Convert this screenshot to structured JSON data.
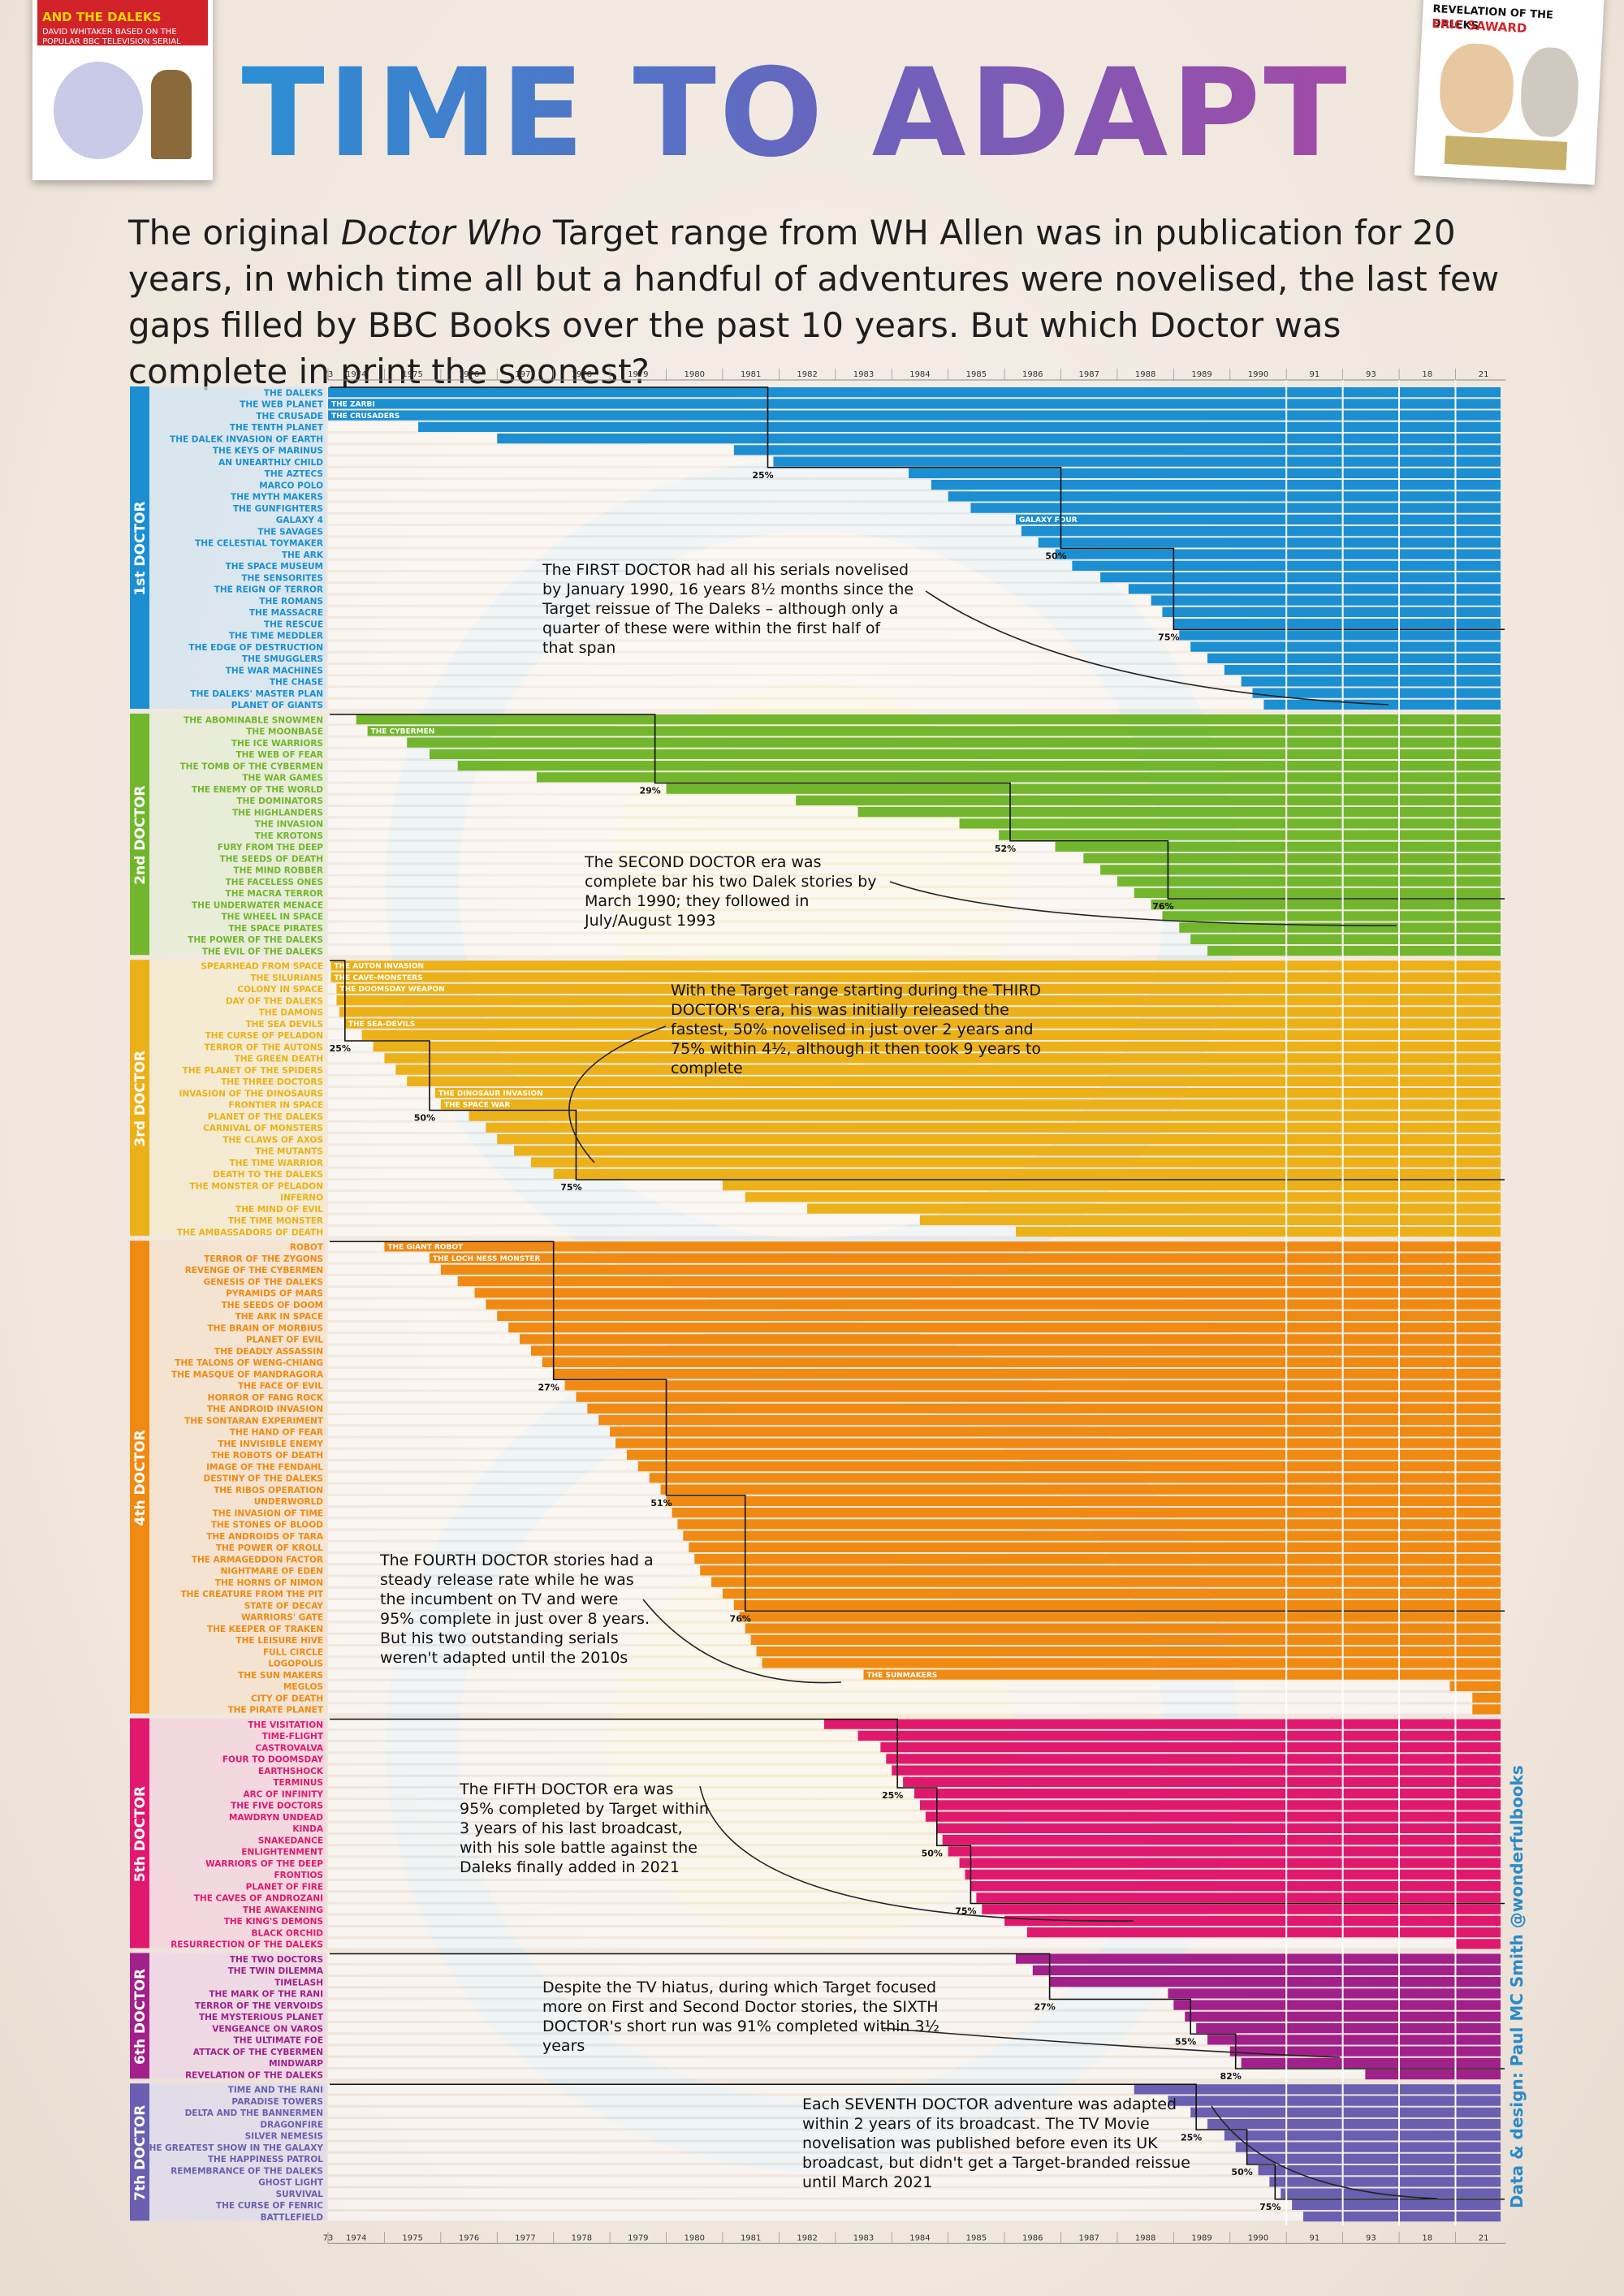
{
  "header": {
    "title": "TIME TO ADAPT",
    "intro_part1": "The original ",
    "intro_italic": "Doctor Who",
    "intro_part2": " Target range from WH Allen was in publication for 20 years, in which time all but a handful of adventures were novelised, the last few gaps filled by BBC Books over the past 10 years. But which Doctor was complete in print the soonest?"
  },
  "covers": {
    "left": {
      "title": "AND THE DALEKS",
      "subtitle": "DAVID WHITAKER BASED ON THE POPULAR BBC TELEVISION SERIAL",
      "color": "#d2232a"
    },
    "right": {
      "title": "REVELATION OF THE DALEKS",
      "subtitle": "ERIC SAWARD",
      "color": "#d2232a"
    }
  },
  "credit": "Data & design: Paul MC Smith  @wonderfulbooks",
  "chart_data": {
    "type": "bar",
    "orientation": "horizontal",
    "description_type": "timeline of first novelisation date per serial; bars extend from first publication to present",
    "x_axis_labels": [
      "73",
      "1974",
      "1975",
      "1976",
      "1977",
      "1978",
      "1979",
      "1980",
      "1981",
      "1982",
      "1983",
      "1984",
      "1985",
      "1986",
      "1987",
      "1988",
      "1989",
      "1990",
      "91",
      "93",
      "18",
      "21"
    ],
    "x_axis_positions": [
      0.0,
      0.5,
      1.5,
      2.5,
      3.5,
      4.5,
      5.5,
      6.5,
      7.5,
      8.5,
      9.5,
      10.5,
      11.5,
      12.5,
      13.5,
      14.5,
      15.5,
      16.5,
      17.5,
      18.5,
      19.5,
      20.5
    ],
    "groups": [
      {
        "name": "1st DOCTOR",
        "color": "#1b8fd2",
        "light": "#d3e6f3",
        "serials": [
          "THE DALEKS",
          "THE WEB PLANET",
          "THE CRUSADE",
          "THE TENTH PLANET",
          "THE DALEK INVASION OF EARTH",
          "THE KEYS OF MARINUS",
          "AN UNEARTHLY CHILD",
          "THE AZTECS",
          "MARCO POLO",
          "THE MYTH MAKERS",
          "THE GUNFIGHTERS",
          "GALAXY 4",
          "THE SAVAGES",
          "THE CELESTIAL TOYMAKER",
          "THE ARK",
          "THE SPACE MUSEUM",
          "THE SENSORITES",
          "THE REIGN OF TERROR",
          "THE ROMANS",
          "THE MASSACRE",
          "THE RESCUE",
          "THE TIME MEDDLER",
          "THE EDGE OF DESTRUCTION",
          "THE SMUGGLERS",
          "THE WAR MACHINES",
          "THE CHASE",
          "THE DALEKS' MASTER PLAN",
          "PLANET OF GIANTS"
        ],
        "starts": [
          0,
          0,
          0,
          1.6,
          3.0,
          7.2,
          7.9,
          10.3,
          10.7,
          11.0,
          11.4,
          12.2,
          12.3,
          12.6,
          12.9,
          13.2,
          13.7,
          14.2,
          14.6,
          14.8,
          15.0,
          15.1,
          15.3,
          15.6,
          15.9,
          16.2,
          16.4,
          16.6
        ],
        "inline_labels": {
          "1": "THE ZARBI",
          "2": "THE CRUSADERS",
          "11": "GALAXY FOUR"
        },
        "milestones": [
          {
            "label": "25%",
            "index": 6,
            "x": 7.8
          },
          {
            "label": "50%",
            "index": 13,
            "x": 13.0
          },
          {
            "label": "75%",
            "index": 20,
            "x": 15.0
          }
        ]
      },
      {
        "name": "2nd DOCTOR",
        "color": "#72b62d",
        "light": "#e4eed6",
        "serials": [
          "THE ABOMINABLE SNOWMEN",
          "THE MOONBASE",
          "THE ICE WARRIORS",
          "THE WEB OF FEAR",
          "THE TOMB OF THE CYBERMEN",
          "THE WAR GAMES",
          "THE ENEMY OF THE WORLD",
          "THE DOMINATORS",
          "THE HIGHLANDERS",
          "THE INVASION",
          "THE KROTONS",
          "FURY FROM THE DEEP",
          "THE SEEDS OF DEATH",
          "THE MIND ROBBER",
          "THE FACELESS ONES",
          "THE MACRA TERROR",
          "THE UNDERWATER MENACE",
          "THE WHEEL IN SPACE",
          "THE SPACE PIRATES",
          "THE POWER OF THE DALEKS",
          "THE EVIL OF THE DALEKS"
        ],
        "starts": [
          0.5,
          0.7,
          1.4,
          1.8,
          2.3,
          3.7,
          6.0,
          8.3,
          9.4,
          11.2,
          11.9,
          12.9,
          13.4,
          13.7,
          14.0,
          14.3,
          14.6,
          14.8,
          15.1,
          15.3,
          15.6
        ],
        "inline_labels": {
          "1": "THE CYBERMEN"
        },
        "milestones": [
          {
            "label": "29%",
            "index": 5,
            "x": 5.8
          },
          {
            "label": "52%",
            "index": 10,
            "x": 12.1
          },
          {
            "label": "76%",
            "index": 15,
            "x": 14.9
          }
        ]
      },
      {
        "name": "3rd DOCTOR",
        "color": "#ecb119",
        "light": "#f4ebcd",
        "serials": [
          "SPEARHEAD FROM SPACE",
          "THE SILURIANS",
          "COLONY IN SPACE",
          "DAY OF THE DALEKS",
          "THE DAMONS",
          "THE SEA DEVILS",
          "THE CURSE OF PELADON",
          "TERROR OF THE AUTONS",
          "THE GREEN DEATH",
          "THE PLANET OF THE SPIDERS",
          "THE THREE DOCTORS",
          "INVASION OF THE DINOSAURS",
          "FRONTIER IN SPACE",
          "PLANET OF THE DALEKS",
          "CARNIVAL OF MONSTERS",
          "THE CLAWS OF AXOS",
          "THE MUTANTS",
          "THE TIME WARRIOR",
          "DEATH TO THE DALEKS",
          "THE MONSTER OF PELADON",
          "INFERNO",
          "THE MIND OF EVIL",
          "THE TIME MONSTER",
          "THE AMBASSADORS OF DEATH"
        ],
        "starts": [
          0.05,
          0.05,
          0.15,
          0.15,
          0.2,
          0.3,
          0.6,
          0.8,
          1.0,
          1.2,
          1.4,
          1.9,
          2.0,
          2.5,
          2.8,
          3.0,
          3.3,
          3.6,
          4.0,
          7.0,
          7.4,
          8.5,
          10.5,
          12.2
        ],
        "inline_labels": {
          "0": "THE AUTON INVASION",
          "1": "THE CAVE-MONSTERS",
          "2": "THE DOOMSDAY WEAPON",
          "5": "THE SEA-DEVILS",
          "11": "THE DINOSAUR INVASION",
          "12": "THE SPACE WAR"
        },
        "milestones": [
          {
            "label": "25%",
            "index": 6,
            "x": 0.3
          },
          {
            "label": "50%",
            "index": 12,
            "x": 1.8
          },
          {
            "label": "75%",
            "index": 18,
            "x": 4.4
          }
        ]
      },
      {
        "name": "4th DOCTOR",
        "color": "#f08a12",
        "light": "#f6e2cc",
        "serials": [
          "ROBOT",
          "TERROR OF THE ZYGONS",
          "REVENGE OF THE CYBERMEN",
          "GENESIS OF THE DALEKS",
          "PYRAMIDS OF MARS",
          "THE SEEDS OF DOOM",
          "THE ARK IN SPACE",
          "THE BRAIN OF MORBIUS",
          "PLANET OF EVIL",
          "THE DEADLY ASSASSIN",
          "THE TALONS OF WENG-CHIANG",
          "THE MASQUE OF MANDRAGORA",
          "THE FACE OF EVIL",
          "HORROR OF FANG ROCK",
          "THE ANDROID INVASION",
          "THE SONTARAN EXPERIMENT",
          "THE HAND OF FEAR",
          "THE INVISIBLE ENEMY",
          "THE ROBOTS OF DEATH",
          "IMAGE OF THE FENDAHL",
          "DESTINY OF THE DALEKS",
          "THE RIBOS OPERATION",
          "UNDERWORLD",
          "THE INVASION OF TIME",
          "THE STONES OF BLOOD",
          "THE ANDROIDS OF TARA",
          "THE POWER OF KROLL",
          "THE ARMAGEDDON FACTOR",
          "NIGHTMARE OF EDEN",
          "THE HORNS OF NIMON",
          "THE CREATURE FROM THE PIT",
          "STATE OF DECAY",
          "WARRIORS' GATE",
          "THE KEEPER OF TRAKEN",
          "THE LEISURE HIVE",
          "FULL CIRCLE",
          "LOGOPOLIS",
          "THE SUN MAKERS",
          "MEGLOS",
          "CITY OF DEATH",
          "THE PIRATE PLANET"
        ],
        "starts": [
          1.0,
          1.8,
          2.0,
          2.3,
          2.6,
          2.8,
          3.0,
          3.2,
          3.4,
          3.6,
          3.8,
          4.0,
          4.2,
          4.4,
          4.6,
          4.8,
          5.0,
          5.1,
          5.3,
          5.5,
          5.7,
          5.9,
          6.0,
          6.1,
          6.2,
          6.3,
          6.4,
          6.5,
          6.6,
          6.8,
          7.0,
          7.2,
          7.3,
          7.4,
          7.5,
          7.6,
          7.7,
          9.5,
          19.9,
          20.3,
          20.3
        ],
        "inline_labels": {
          "0": "THE GIANT ROBOT",
          "1": "THE LOCH NESS MONSTER",
          "37": "THE SUNMAKERS"
        },
        "milestones": [
          {
            "label": "27%",
            "index": 11,
            "x": 4.0
          },
          {
            "label": "51%",
            "index": 21,
            "x": 6.0
          },
          {
            "label": "76%",
            "index": 31,
            "x": 7.4
          }
        ]
      },
      {
        "name": "5th DOCTOR",
        "color": "#e0196f",
        "light": "#f5d3e0",
        "serials": [
          "THE VISITATION",
          "TIME-FLIGHT",
          "CASTROVALVA",
          "FOUR TO DOOMSDAY",
          "EARTHSHOCK",
          "TERMINUS",
          "ARC OF INFINITY",
          "THE FIVE DOCTORS",
          "MAWDRYN UNDEAD",
          "KINDA",
          "SNAKEDANCE",
          "ENLIGHTENMENT",
          "WARRIORS OF THE DEEP",
          "FRONTIOS",
          "PLANET OF FIRE",
          "THE CAVES OF ANDROZANI",
          "THE AWAKENING",
          "THE KING'S DEMONS",
          "BLACK ORCHID",
          "RESURRECTION OF THE DALEKS"
        ],
        "starts": [
          8.8,
          9.4,
          9.8,
          9.9,
          10.0,
          10.2,
          10.4,
          10.5,
          10.6,
          10.8,
          10.9,
          11.0,
          11.2,
          11.3,
          11.4,
          11.5,
          11.6,
          12.0,
          12.4,
          20.0
        ],
        "inline_labels": {},
        "milestones": [
          {
            "label": "25%",
            "index": 5,
            "x": 10.1
          },
          {
            "label": "50%",
            "index": 10,
            "x": 10.8
          },
          {
            "label": "75%",
            "index": 15,
            "x": 11.4
          }
        ]
      },
      {
        "name": "6th DOCTOR",
        "color": "#a1208a",
        "light": "#eed5e7",
        "serials": [
          "THE TWO DOCTORS",
          "THE TWIN DILEMMA",
          "TIMELASH",
          "THE MARK OF THE RANI",
          "TERROR OF THE VERVOIDS",
          "THE MYSTERIOUS PLANET",
          "VENGEANCE ON VAROS",
          "THE ULTIMATE FOE",
          "ATTACK OF THE CYBERMEN",
          "MINDWARP",
          "REVELATION OF THE DALEKS"
        ],
        "starts": [
          12.2,
          12.5,
          12.8,
          14.9,
          15.0,
          15.2,
          15.4,
          15.6,
          16.0,
          16.2,
          18.4
        ],
        "inline_labels": {},
        "milestones": [
          {
            "label": "27%",
            "index": 3,
            "x": 12.8
          },
          {
            "label": "55%",
            "index": 6,
            "x": 15.3
          },
          {
            "label": "82%",
            "index": 9,
            "x": 16.1
          }
        ]
      },
      {
        "name": "7th DOCTOR",
        "color": "#6a5fb0",
        "light": "#dedbee",
        "serials": [
          "TIME AND THE RANI",
          "PARADISE TOWERS",
          "DELTA AND THE BANNERMEN",
          "DRAGONFIRE",
          "SILVER NEMESIS",
          "THE GREATEST SHOW IN THE GALAXY",
          "THE HAPPINESS PATROL",
          "REMEMBRANCE OF THE DALEKS",
          "GHOST LIGHT",
          "SURVIVAL",
          "THE CURSE OF FENRIC",
          "BATTLEFIELD"
        ],
        "starts": [
          14.3,
          14.9,
          15.3,
          15.6,
          15.9,
          16.1,
          16.3,
          16.5,
          16.7,
          16.9,
          17.1,
          17.3
        ],
        "inline_labels": {},
        "milestones": [
          {
            "label": "25%",
            "index": 3,
            "x": 15.4
          },
          {
            "label": "50%",
            "index": 6,
            "x": 16.3
          },
          {
            "label": "75%",
            "index": 9,
            "x": 16.8
          }
        ]
      }
    ]
  },
  "annotations": [
    {
      "id": "first",
      "text": "The FIRST DOCTOR had all his serials novelised by January 1990, 16 years 8½ months since the Target reissue of The Daleks – although only a quarter of these were within the first half of that span"
    },
    {
      "id": "second",
      "text": "The SECOND DOCTOR era was complete bar his two Dalek stories by March 1990; they followed in July/August 1993"
    },
    {
      "id": "third",
      "text": "With the Target range starting during the THIRD DOCTOR's era, his was initially released the fastest, 50% novelised in just over 2 years and 75% within 4½, although it then took 9 years to complete"
    },
    {
      "id": "fourth",
      "text": "The FOURTH DOCTOR stories had a steady release rate while he was the incumbent on TV and were 95% complete in just over 8 years. But his two outstanding serials weren't adapted until the 2010s"
    },
    {
      "id": "fifth",
      "text": "The FIFTH DOCTOR era was 95% completed by Target within 3 years of his last broadcast, with his sole battle against the Daleks finally added in 2021"
    },
    {
      "id": "sixth",
      "text": "Despite the TV hiatus, during which Target focused more on First and Second Doctor stories, the SIXTH DOCTOR's short run was 91% completed within 3½ years"
    },
    {
      "id": "seventh",
      "text": "Each SEVENTH DOCTOR adventure was adapted within 2 years of its broadcast. The TV Movie novelisation was published before even its UK broadcast, but didn't get a Target-branded reissue until March 2021"
    }
  ]
}
